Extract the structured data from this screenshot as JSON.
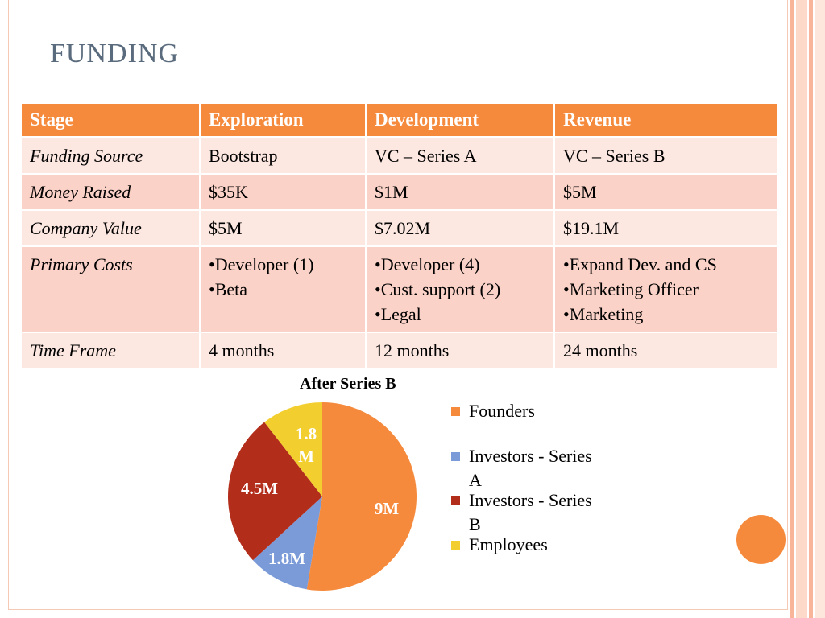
{
  "slide": {
    "title": "FUNDING"
  },
  "table": {
    "headers": [
      "Stage",
      "Exploration",
      "Development",
      "Revenue"
    ],
    "rows": [
      {
        "label": "Funding Source",
        "cells": [
          "Bootstrap",
          "VC – Series A",
          "VC – Series B"
        ]
      },
      {
        "label": "Money Raised",
        "cells": [
          "$35K",
          "$1M",
          "$5M"
        ]
      },
      {
        "label": "Company Value",
        "cells": [
          "$5M",
          "$7.02M",
          "$19.1M"
        ]
      },
      {
        "label": "Primary Costs",
        "cells": [
          [
            "•Developer (1)",
            "•Beta"
          ],
          [
            "•Developer (4)",
            "•Cust. support (2)",
            "•Legal"
          ],
          [
            "•Expand Dev. and CS",
            "•Marketing Officer",
            "•Marketing"
          ]
        ]
      },
      {
        "label": "Time Frame",
        "cells": [
          "4 months",
          "12 months",
          "24 months"
        ]
      }
    ]
  },
  "chart_data": {
    "type": "pie",
    "title": "After Series B",
    "categories": [
      "Founders",
      "Investors - Series A",
      "Investors - Series B",
      "Employees"
    ],
    "values": [
      9,
      1.8,
      4.5,
      1.8
    ],
    "data_labels": [
      "9M",
      "1.8M",
      "4.5M",
      "1.8 M"
    ],
    "colors": [
      "#f58a3d",
      "#7b9bd8",
      "#b32d1b",
      "#f2cf2f"
    ],
    "legend": "right",
    "legend_labels": [
      "Founders",
      "Investors - Series A",
      "Investors - Series B",
      "Employees"
    ]
  },
  "theme": {
    "accent": "#f58a3d",
    "row_light": "#fde7e1",
    "row_dark": "#fbd2c7",
    "title_color": "#5a6b7d"
  }
}
